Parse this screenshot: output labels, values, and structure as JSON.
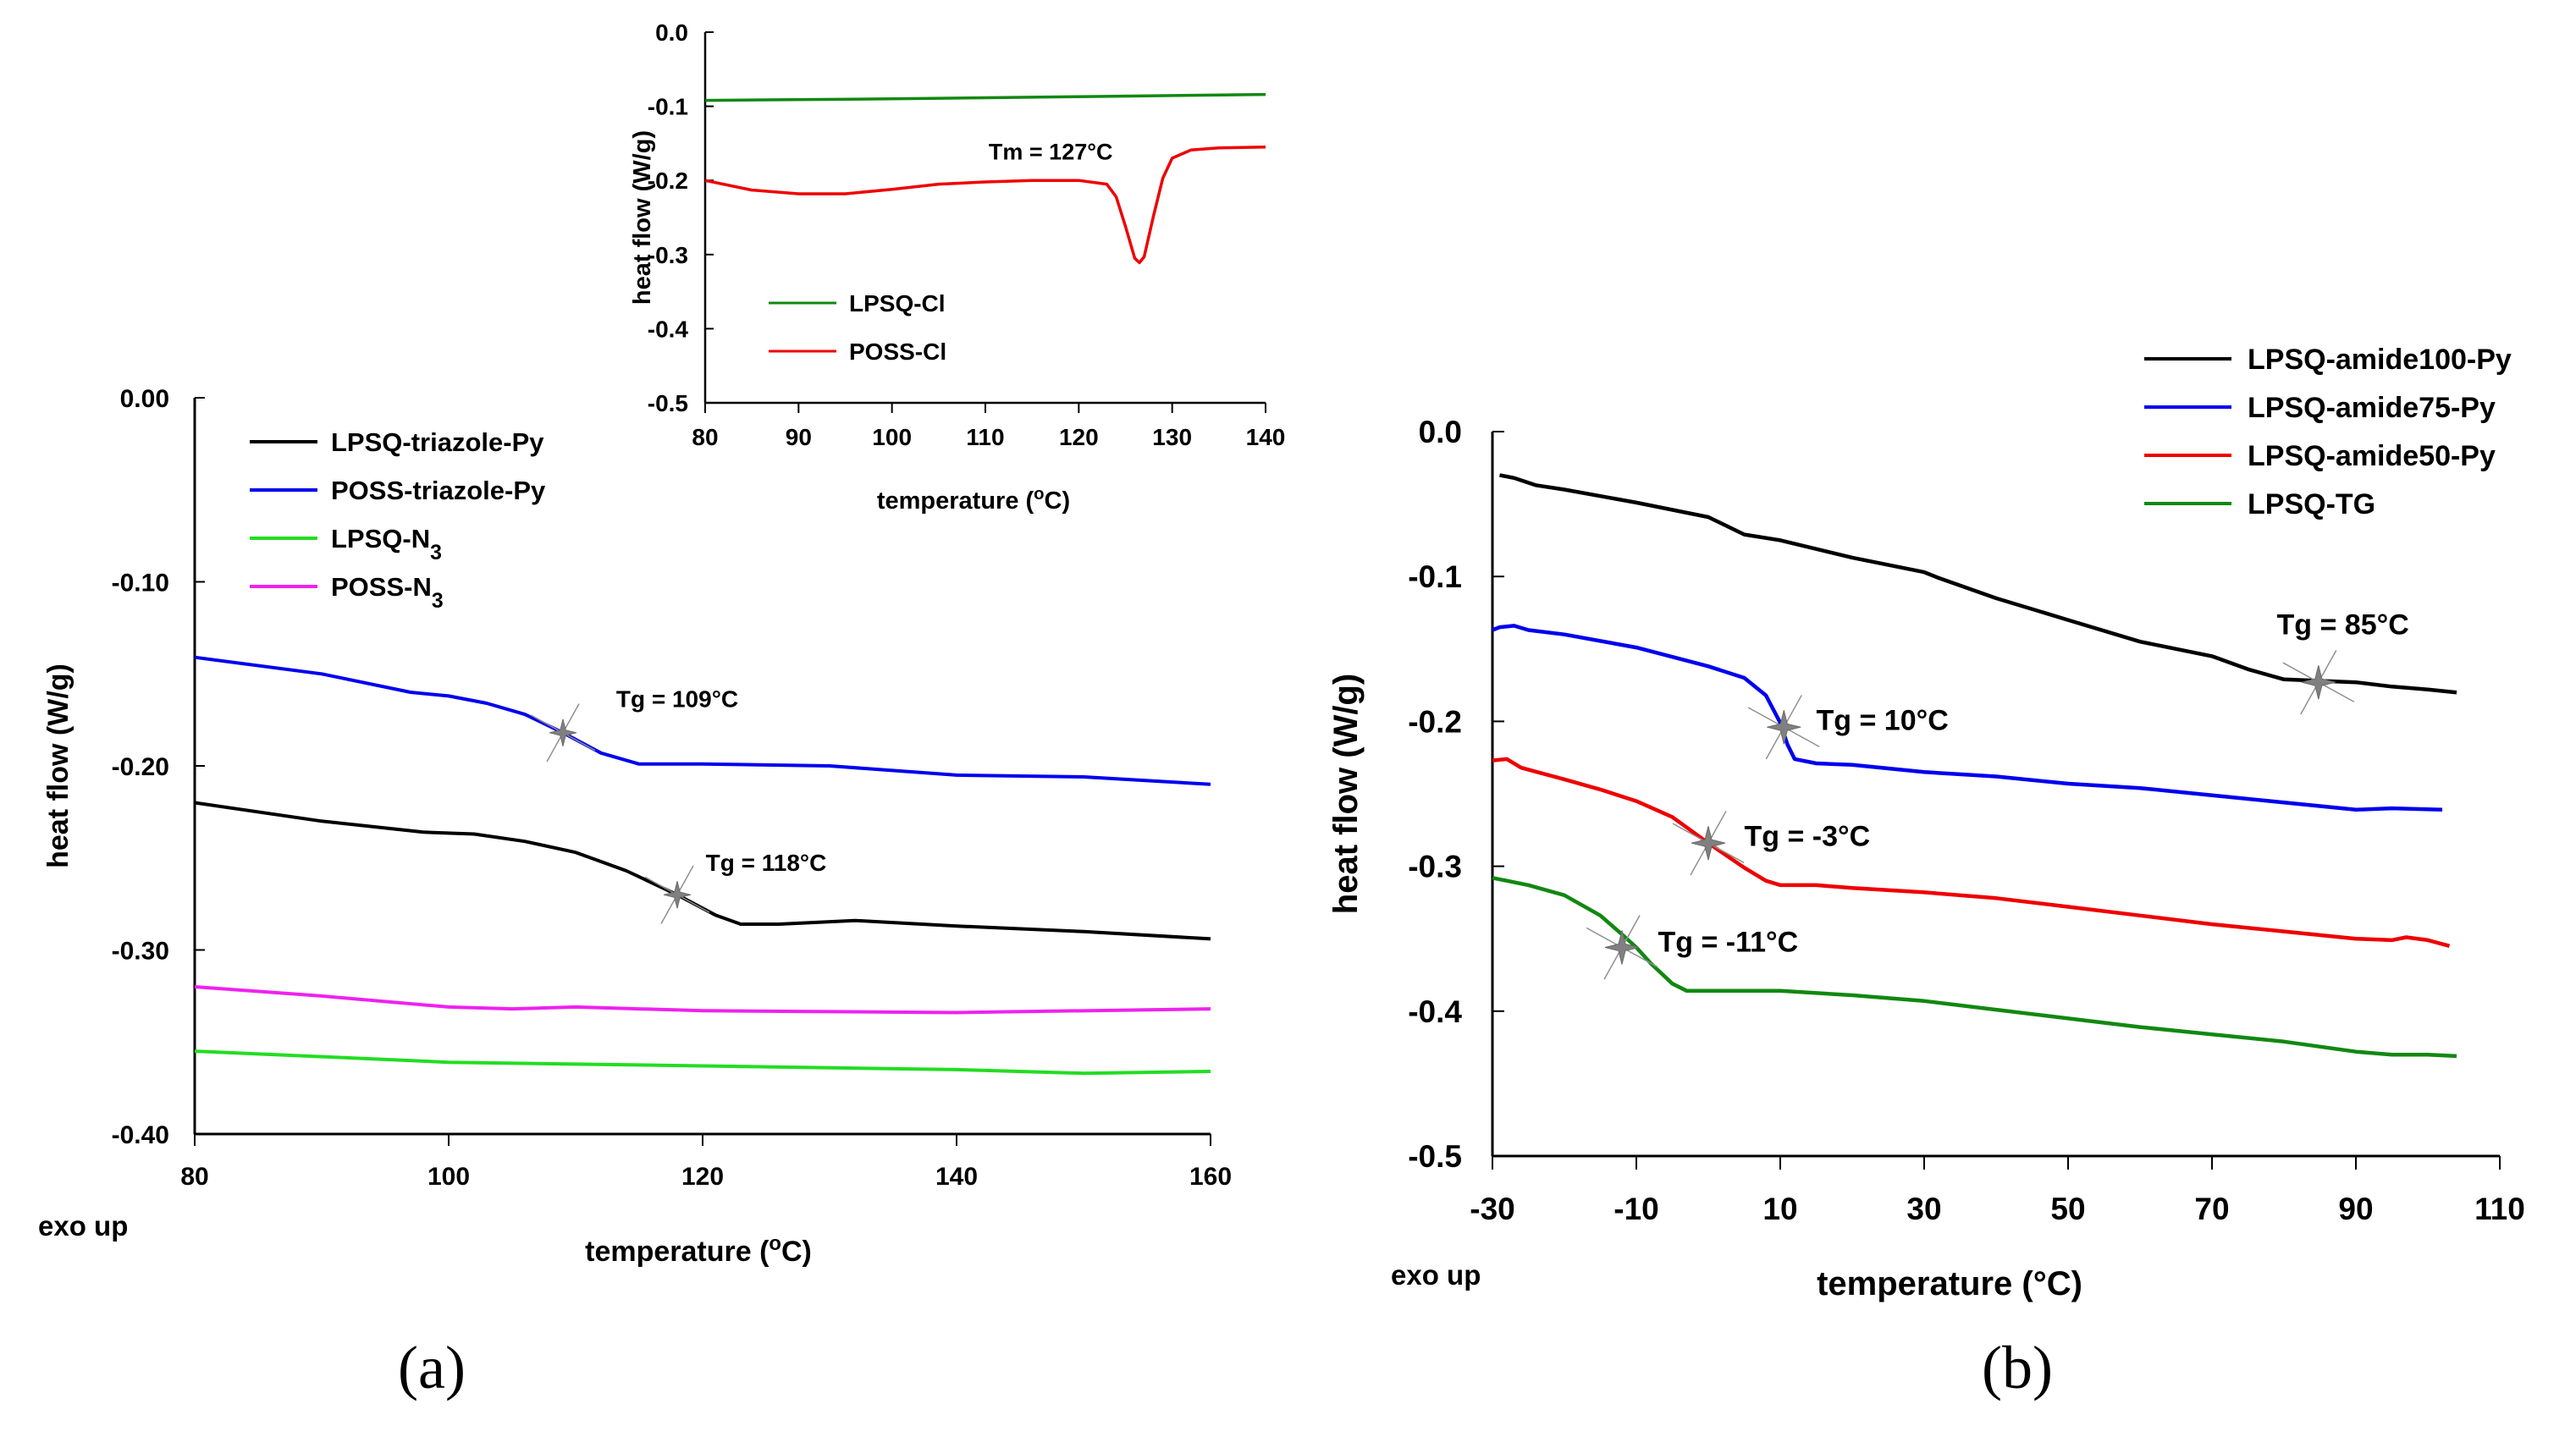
{
  "chart_data": [
    {
      "id": "a",
      "type": "line",
      "panel_label": "(a)",
      "xlabel": "temperature",
      "xlabel_unit": "(oC)",
      "ylabel": "heat flow (W/g)",
      "exo_label": "exo up",
      "xlim": [
        80,
        160
      ],
      "ylim": [
        -0.4,
        0.0
      ],
      "xticks": [
        "80",
        "100",
        "120",
        "140",
        "160"
      ],
      "yticks": [
        "0.00",
        "-0.10",
        "-0.20",
        "-0.30",
        "-0.40"
      ],
      "legend_position": "top-left",
      "series": [
        {
          "name": "LPSQ-triazole-Py",
          "legend_main": "LPSQ-triazole-Py",
          "legend_sub": "",
          "color": "#000000",
          "x": [
            80,
            90,
            98,
            102,
            106,
            110,
            114,
            118,
            121,
            123,
            126,
            132,
            140,
            150,
            160
          ],
          "y": [
            -0.22,
            -0.23,
            -0.236,
            -0.237,
            -0.241,
            -0.247,
            -0.257,
            -0.27,
            -0.281,
            -0.286,
            -0.286,
            -0.284,
            -0.287,
            -0.29,
            -0.294
          ]
        },
        {
          "name": "POSS-triazole-Py",
          "legend_main": "POSS-triazole-Py",
          "legend_sub": "",
          "color": "#0000ee",
          "x": [
            80,
            90,
            97,
            100,
            103,
            106,
            109,
            112,
            115,
            120,
            130,
            140,
            150,
            160
          ],
          "y": [
            -0.141,
            -0.15,
            -0.16,
            -0.162,
            -0.166,
            -0.172,
            -0.182,
            -0.193,
            -0.199,
            -0.199,
            -0.2,
            -0.205,
            -0.206,
            -0.21
          ]
        },
        {
          "name": "LPSQ-N3",
          "legend_main": "LPSQ-N",
          "legend_sub": "3",
          "color": "#22dd22",
          "x": [
            80,
            90,
            100,
            120,
            140,
            150,
            160
          ],
          "y": [
            -0.355,
            -0.358,
            -0.361,
            -0.363,
            -0.365,
            -0.367,
            -0.366
          ]
        },
        {
          "name": "POSS-N3",
          "legend_main": "POSS-N",
          "legend_sub": "3",
          "color": "#ee22ee",
          "x": [
            80,
            90,
            100,
            105,
            110,
            120,
            140,
            160
          ],
          "y": [
            -0.32,
            -0.325,
            -0.331,
            -0.332,
            -0.331,
            -0.333,
            -0.334,
            -0.332
          ]
        }
      ],
      "annotations": [
        {
          "text": "Tg = 109°C",
          "x": 109,
          "y": -0.182,
          "tx": 118,
          "ty": -0.168
        },
        {
          "text": "Tg = 118°C",
          "x": 118,
          "y": -0.27,
          "tx": 125,
          "ty": -0.257
        }
      ],
      "inset": {
        "type": "line",
        "xlabel": "temperature",
        "xlabel_unit": "(oC)",
        "ylabel": "heat flow (W/g)",
        "xlim": [
          80,
          140
        ],
        "ylim": [
          -0.5,
          0.0
        ],
        "xticks": [
          "80",
          "90",
          "100",
          "110",
          "120",
          "130",
          "140"
        ],
        "yticks": [
          "0.0",
          "-0.1",
          "-0.2",
          "-0.3",
          "-0.4",
          "-0.5"
        ],
        "legend_position": "bottom-left",
        "series": [
          {
            "name": "LPSQ-Cl",
            "color": "#118811",
            "x": [
              80,
              100,
              120,
              140
            ],
            "y": [
              -0.092,
              -0.09,
              -0.087,
              -0.084
            ]
          },
          {
            "name": "POSS-Cl",
            "color": "#ee0000",
            "x": [
              80,
              85,
              90,
              95,
              100,
              105,
              110,
              115,
              120,
              123,
              124,
              125,
              126,
              126.5,
              127,
              128,
              129,
              130,
              132,
              135,
              140
            ],
            "y": [
              -0.2,
              -0.213,
              -0.218,
              -0.218,
              -0.212,
              -0.205,
              -0.202,
              -0.2,
              -0.2,
              -0.205,
              -0.222,
              -0.262,
              -0.305,
              -0.311,
              -0.303,
              -0.248,
              -0.197,
              -0.17,
              -0.159,
              -0.156,
              -0.155
            ]
          }
        ],
        "annotations": [
          {
            "text": "Tm = 127°C",
            "tx": 117,
            "ty": -0.172
          }
        ]
      }
    },
    {
      "id": "b",
      "type": "line",
      "panel_label": "(b)",
      "xlabel": "temperature",
      "xlabel_unit": "(°C)",
      "ylabel": "heat flow (W/g)",
      "exo_label": "exo up",
      "xlim": [
        -30,
        110
      ],
      "ylim": [
        -0.5,
        0.0
      ],
      "xticks": [
        "-30",
        "-10",
        "10",
        "30",
        "50",
        "70",
        "90",
        "110"
      ],
      "yticks": [
        "0.0",
        "-0.1",
        "-0.2",
        "-0.3",
        "-0.4",
        "-0.5"
      ],
      "legend_position": "top-right",
      "series": [
        {
          "name": "LPSQ-amide100-Py",
          "color": "#000000",
          "x": [
            -29,
            -27,
            -24,
            -20,
            -10,
            0,
            5,
            10,
            20,
            30,
            32,
            40,
            50,
            60,
            70,
            75,
            80,
            85,
            90,
            95,
            100,
            104
          ],
          "y": [
            -0.03,
            -0.032,
            -0.037,
            -0.04,
            -0.049,
            -0.059,
            -0.071,
            -0.075,
            -0.087,
            -0.097,
            -0.101,
            -0.115,
            -0.13,
            -0.145,
            -0.155,
            -0.164,
            -0.171,
            -0.172,
            -0.173,
            -0.176,
            -0.178,
            -0.18
          ]
        },
        {
          "name": "LPSQ-amide75-Py",
          "color": "#0000ee",
          "x": [
            -30,
            -29,
            -27,
            -25,
            -20,
            -10,
            0,
            5,
            8,
            10,
            11,
            12,
            15,
            20,
            30,
            40,
            50,
            60,
            70,
            80,
            90,
            95,
            102
          ],
          "y": [
            -0.137,
            -0.135,
            -0.134,
            -0.137,
            -0.14,
            -0.149,
            -0.162,
            -0.17,
            -0.182,
            -0.201,
            -0.216,
            -0.226,
            -0.229,
            -0.23,
            -0.235,
            -0.238,
            -0.243,
            -0.246,
            -0.251,
            -0.256,
            -0.261,
            -0.26,
            -0.261
          ]
        },
        {
          "name": "LPSQ-amide50-Py",
          "color": "#ee0000",
          "x": [
            -30,
            -28,
            -26,
            -20,
            -15,
            -10,
            -5,
            0,
            5,
            8,
            10,
            15,
            20,
            30,
            40,
            50,
            60,
            70,
            80,
            90,
            95,
            97,
            100,
            103
          ],
          "y": [
            -0.227,
            -0.226,
            -0.232,
            -0.24,
            -0.247,
            -0.255,
            -0.266,
            -0.284,
            -0.301,
            -0.31,
            -0.313,
            -0.313,
            -0.315,
            -0.318,
            -0.322,
            -0.328,
            -0.334,
            -0.34,
            -0.345,
            -0.35,
            -0.351,
            -0.349,
            -0.351,
            -0.355
          ]
        },
        {
          "name": "LPSQ-TG",
          "color": "#118811",
          "x": [
            -30,
            -25,
            -20,
            -15,
            -12,
            -10,
            -8,
            -5,
            -3,
            0,
            5,
            10,
            20,
            30,
            40,
            50,
            60,
            70,
            80,
            90,
            95,
            100,
            104
          ],
          "y": [
            -0.308,
            -0.313,
            -0.32,
            -0.334,
            -0.347,
            -0.356,
            -0.367,
            -0.381,
            -0.386,
            -0.386,
            -0.386,
            -0.386,
            -0.389,
            -0.393,
            -0.399,
            -0.405,
            -0.411,
            -0.416,
            -0.421,
            -0.428,
            -0.43,
            -0.43,
            -0.431
          ]
        }
      ],
      "annotations": [
        {
          "text": "Tg = 85°C",
          "x": 84.8,
          "y": -0.173,
          "tx": 79,
          "ty": -0.14
        },
        {
          "text": "Tg = 10°C",
          "x": 10.5,
          "y": -0.204,
          "tx": 15,
          "ty": -0.206
        },
        {
          "text": "Tg = -3°C",
          "x": 0,
          "y": -0.284,
          "tx": 5,
          "ty": -0.286
        },
        {
          "text": "Tg = -11°C",
          "x": -12,
          "y": -0.356,
          "tx": -7,
          "ty": -0.359
        }
      ]
    }
  ]
}
